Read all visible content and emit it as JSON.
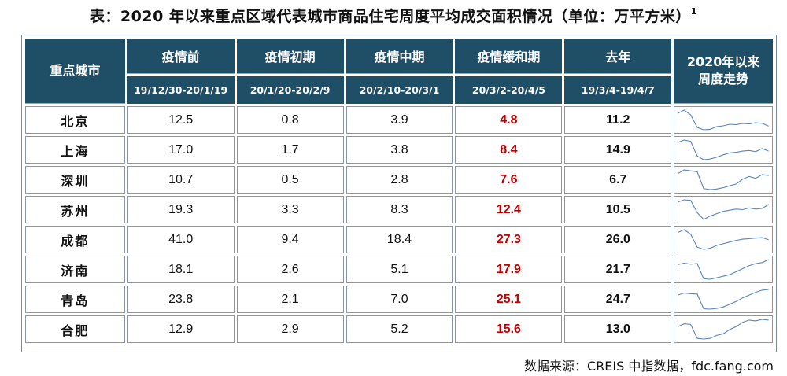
{
  "title": {
    "text": "表：2020 年以来重点区域代表城市商品住宅周度平均成交面积情况（单位：万平方米）",
    "footnote": "1"
  },
  "header": {
    "city_col": "重点城市",
    "trend_col": "2020年以来周度走势",
    "periods": [
      {
        "name": "疫情前",
        "range": "19/12/30-20/1/19"
      },
      {
        "name": "疫情初期",
        "range": "20/1/20-20/2/9"
      },
      {
        "name": "疫情中期",
        "range": "20/2/10-20/3/1"
      },
      {
        "name": "疫情缓和期",
        "range": "20/3/2-20/4/5"
      },
      {
        "name": "去年",
        "range": "19/3/4-19/4/7"
      }
    ]
  },
  "rows": [
    {
      "city": "北京",
      "pre": "12.5",
      "early": "0.8",
      "mid": "3.9",
      "ease": "4.8",
      "last_year": "11.2",
      "trend": [
        11,
        13,
        10,
        2,
        0.5,
        0.8,
        2.5,
        3,
        4,
        3.8,
        4.5,
        4.2,
        5,
        4.6,
        2.8
      ]
    },
    {
      "city": "上海",
      "pre": "17.0",
      "early": "1.7",
      "mid": "3.8",
      "ease": "8.4",
      "last_year": "14.9",
      "trend": [
        15,
        17,
        16,
        4,
        1,
        1.5,
        3,
        5,
        6.5,
        7,
        8,
        8.5,
        7.5,
        10,
        8
      ]
    },
    {
      "city": "深圳",
      "pre": "10.7",
      "early": "0.5",
      "mid": "2.8",
      "ease": "7.6",
      "last_year": "6.7",
      "trend": [
        9,
        11,
        10.5,
        10,
        1,
        0.5,
        0.8,
        1.5,
        2.5,
        3.5,
        6,
        7.5,
        6.5,
        8.5,
        8
      ]
    },
    {
      "city": "苏州",
      "pre": "19.3",
      "early": "3.3",
      "mid": "8.3",
      "ease": "12.4",
      "last_year": "10.5",
      "trend": [
        18,
        20,
        19.5,
        9,
        3,
        6,
        8,
        10,
        11,
        12,
        11.5,
        13,
        12,
        12.5,
        16
      ]
    },
    {
      "city": "成都",
      "pre": "41.0",
      "early": "9.4",
      "mid": "18.4",
      "ease": "27.3",
      "last_year": "26.0",
      "trend": [
        38,
        43,
        35,
        12,
        8,
        10,
        15,
        18,
        21,
        24,
        26,
        27,
        28,
        29,
        25
      ]
    },
    {
      "city": "济南",
      "pre": "18.1",
      "early": "2.6",
      "mid": "5.1",
      "ease": "17.9",
      "last_year": "21.7",
      "trend": [
        17,
        18.5,
        17.5,
        18,
        3,
        2.5,
        4,
        5.5,
        7,
        10,
        13,
        16,
        18,
        19,
        22
      ]
    },
    {
      "city": "青岛",
      "pre": "23.8",
      "early": "2.1",
      "mid": "7.0",
      "ease": "25.1",
      "last_year": "24.7",
      "trend": [
        22,
        25,
        24,
        23.5,
        2.5,
        2,
        3,
        5,
        9,
        13,
        18,
        22,
        26,
        29,
        30
      ]
    },
    {
      "city": "合肥",
      "pre": "12.9",
      "early": "2.9",
      "mid": "5.2",
      "ease": "15.6",
      "last_year": "13.0",
      "trend": [
        11,
        13,
        12.5,
        3,
        2.5,
        3,
        5,
        6,
        9,
        11,
        14,
        15.5,
        15,
        16,
        15.5
      ]
    }
  ],
  "source": "数据来源：CREIS 中指数据，fdc.fang.com",
  "colors": {
    "header_bg": "#1f4e67",
    "highlight": "#c00000",
    "sparkline": "#5b86b8"
  }
}
